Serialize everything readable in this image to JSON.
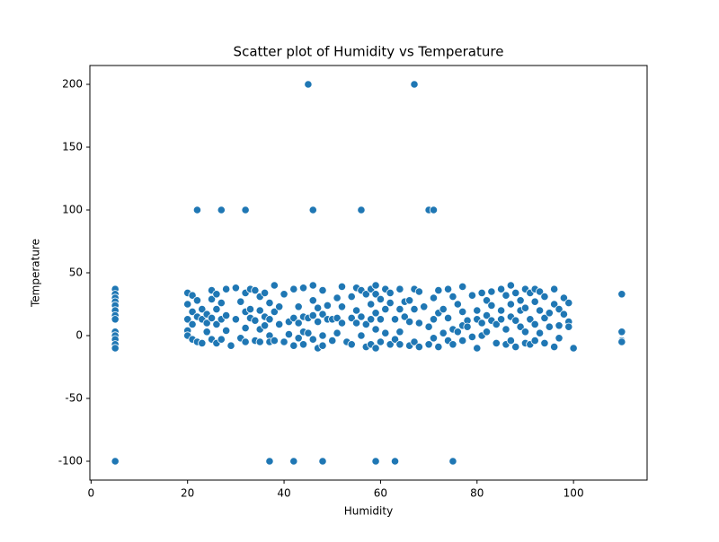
{
  "chart_data": {
    "type": "scatter",
    "title": "Scatter plot of Humidity vs Temperature",
    "x_label": "Humidity",
    "y_label": "Temperature",
    "color": "#1f77b4",
    "grid": false,
    "xlim": [
      -0.25,
      115.25
    ],
    "ylim": [
      -115,
      215
    ],
    "xticks": [
      0,
      20,
      40,
      60,
      80,
      100
    ],
    "yticks": [
      -100,
      -50,
      0,
      50,
      100,
      150,
      200
    ],
    "x": [
      5,
      37,
      42,
      48,
      59,
      63,
      75,
      45,
      67,
      22,
      27,
      32,
      46,
      56,
      70,
      71,
      5,
      5,
      5,
      5,
      5,
      5,
      5,
      5,
      5,
      5,
      5,
      5,
      5,
      110,
      110,
      110,
      110,
      20,
      20,
      20,
      20,
      20,
      21,
      21,
      21,
      21,
      22,
      22,
      22,
      23,
      23,
      23,
      24,
      24,
      24,
      25,
      25,
      25,
      25,
      26,
      26,
      26,
      26,
      27,
      27,
      27,
      28,
      28,
      28,
      29,
      30,
      30,
      31,
      31,
      32,
      32,
      32,
      32,
      33,
      33,
      33,
      34,
      34,
      34,
      35,
      35,
      35,
      35,
      36,
      36,
      36,
      37,
      37,
      37,
      37,
      38,
      38,
      38,
      39,
      39,
      40,
      40,
      41,
      41,
      42,
      42,
      42,
      43,
      43,
      43,
      44,
      44,
      44,
      44,
      45,
      45,
      46,
      46,
      46,
      46,
      47,
      47,
      47,
      48,
      48,
      48,
      48,
      49,
      49,
      50,
      50,
      51,
      51,
      51,
      52,
      52,
      52,
      53,
      54,
      54,
      54,
      55,
      55,
      55,
      56,
      56,
      56,
      57,
      57,
      57,
      58,
      58,
      58,
      58,
      59,
      59,
      59,
      59,
      59,
      60,
      60,
      60,
      61,
      61,
      61,
      62,
      62,
      62,
      63,
      63,
      64,
      64,
      64,
      64,
      65,
      65,
      66,
      66,
      66,
      67,
      67,
      67,
      68,
      68,
      68,
      69,
      70,
      70,
      71,
      71,
      71,
      72,
      72,
      72,
      73,
      73,
      74,
      74,
      74,
      75,
      75,
      75,
      76,
      76,
      77,
      77,
      77,
      77,
      78,
      78,
      79,
      79,
      80,
      80,
      80,
      81,
      81,
      81,
      82,
      82,
      82,
      83,
      83,
      83,
      84,
      84,
      85,
      85,
      85,
      86,
      86,
      86,
      87,
      87,
      87,
      87,
      88,
      88,
      88,
      89,
      89,
      89,
      90,
      90,
      90,
      90,
      91,
      91,
      91,
      92,
      92,
      92,
      92,
      93,
      93,
      93,
      94,
      94,
      94,
      95,
      95,
      96,
      96,
      96,
      97,
      97,
      97,
      98,
      98,
      99,
      99,
      99,
      100
    ],
    "values": [
      -100,
      -100,
      -100,
      -100,
      -100,
      -100,
      -100,
      200,
      200,
      100,
      100,
      100,
      100,
      100,
      100,
      100,
      37,
      33,
      30,
      27,
      24,
      20,
      16,
      13,
      3,
      0,
      -3,
      -7,
      -10,
      33,
      3,
      -4,
      -5,
      34,
      25,
      13,
      4,
      0,
      32,
      19,
      9,
      -3,
      28,
      15,
      -5,
      21,
      13,
      -6,
      17,
      10,
      3,
      36,
      29,
      14,
      -3,
      33,
      21,
      9,
      -6,
      26,
      13,
      -3,
      37,
      16,
      4,
      -8,
      38,
      13,
      27,
      -2,
      34,
      19,
      6,
      -5,
      37,
      21,
      14,
      36,
      12,
      -4,
      31,
      20,
      5,
      -5,
      34,
      15,
      8,
      26,
      13,
      0,
      -5,
      40,
      19,
      -4,
      23,
      9,
      33,
      -5,
      11,
      1,
      37,
      14,
      -8,
      23,
      10,
      -2,
      38,
      15,
      3,
      -7,
      14,
      2,
      40,
      28,
      16,
      -3,
      22,
      11,
      -10,
      36,
      17,
      0,
      -8,
      24,
      13,
      13,
      -4,
      30,
      14,
      2,
      39,
      23,
      10,
      -5,
      31,
      14,
      -7,
      38,
      20,
      10,
      36,
      15,
      0,
      33,
      9,
      -9,
      37,
      25,
      13,
      -7,
      40,
      33,
      18,
      5,
      -10,
      29,
      13,
      -5,
      37,
      21,
      2,
      34,
      26,
      -7,
      13,
      -3,
      37,
      21,
      3,
      -7,
      27,
      15,
      28,
      11,
      -8,
      37,
      21,
      -5,
      35,
      10,
      -9,
      23,
      7,
      -7,
      30,
      13,
      -2,
      36,
      18,
      -9,
      21,
      2,
      37,
      14,
      -4,
      31,
      5,
      -7,
      25,
      3,
      39,
      19,
      8,
      -4,
      12,
      7,
      32,
      -1,
      20,
      13,
      -10,
      34,
      10,
      0,
      28,
      16,
      3,
      35,
      24,
      12,
      9,
      -6,
      37,
      20,
      13,
      32,
      5,
      -7,
      40,
      25,
      15,
      -4,
      34,
      12,
      -9,
      28,
      20,
      7,
      37,
      22,
      3,
      -6,
      34,
      13,
      -7,
      37,
      27,
      9,
      -4,
      35,
      20,
      2,
      31,
      14,
      -6,
      18,
      7,
      37,
      25,
      -9,
      21,
      8,
      -2,
      30,
      17,
      26,
      11,
      7,
      -10
    ]
  }
}
